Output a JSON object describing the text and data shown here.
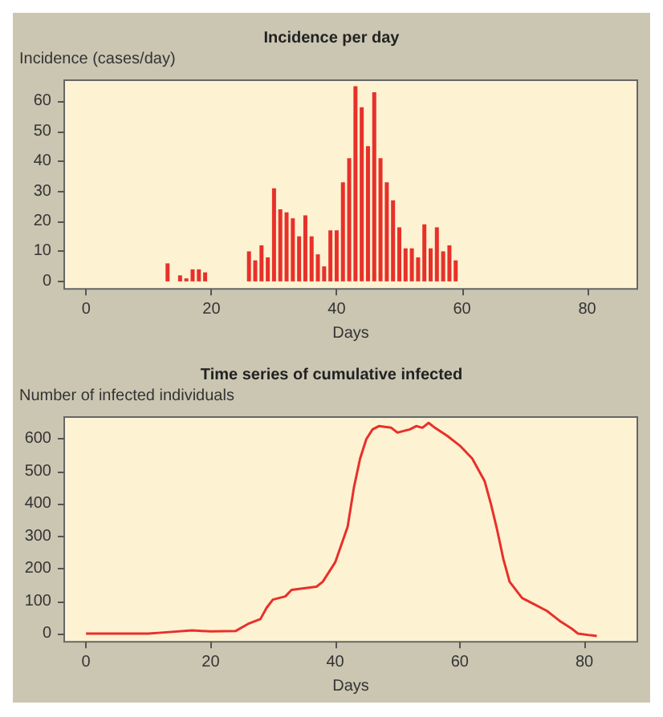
{
  "chart_data": [
    {
      "type": "bar",
      "title": "Incidence per day",
      "xlabel": "Days",
      "ylabel": "Incidence (cases/day)",
      "x": [
        13,
        15,
        16,
        17,
        18,
        19,
        26,
        27,
        28,
        29,
        30,
        31,
        32,
        33,
        34,
        35,
        36,
        37,
        38,
        39,
        40,
        41,
        42,
        43,
        44,
        45,
        46,
        47,
        48,
        49,
        50,
        51,
        52,
        53,
        54,
        55,
        56,
        57,
        58,
        59
      ],
      "series": [
        {
          "color": "#e8302a",
          "values": [
            6,
            2,
            1,
            4,
            4,
            3,
            10,
            7,
            12,
            8,
            31,
            24,
            23,
            21,
            15,
            22,
            15,
            9,
            5,
            17,
            17,
            33,
            41,
            65,
            58,
            45,
            63,
            41,
            33,
            27,
            18,
            11,
            11,
            8,
            19,
            11,
            18,
            10,
            12,
            7
          ]
        }
      ],
      "xlim": [
        -3.5,
        88
      ],
      "xticks": [
        0,
        20,
        40,
        60,
        80
      ],
      "ylim": [
        -2.5,
        67
      ],
      "yticks": [
        0,
        10,
        20,
        30,
        40,
        50,
        60
      ],
      "grid": false
    },
    {
      "type": "line",
      "title": "Time series of cumulative infected",
      "xlabel": "Days",
      "ylabel": "Number of infected individuals",
      "marker": "none",
      "x": [
        0,
        10,
        12,
        17,
        20,
        24,
        26,
        28,
        29,
        30,
        32,
        33,
        35,
        37,
        38,
        40,
        42,
        43,
        44,
        45,
        46,
        47,
        49,
        50,
        52,
        53,
        54,
        55,
        56,
        58,
        60,
        62,
        64,
        65,
        66,
        67,
        68,
        70,
        72,
        74,
        76,
        78,
        79,
        81,
        82
      ],
      "series": [
        {
          "color": "#e8302a",
          "values": [
            0,
            0,
            3,
            10,
            7,
            8,
            30,
            45,
            80,
            105,
            115,
            135,
            140,
            145,
            160,
            220,
            330,
            450,
            540,
            600,
            630,
            640,
            635,
            620,
            630,
            640,
            635,
            650,
            635,
            610,
            580,
            540,
            470,
            400,
            320,
            230,
            160,
            110,
            90,
            70,
            40,
            15,
            0,
            -5,
            -7
          ]
        }
      ],
      "xlim": [
        -3.5,
        88.5
      ],
      "xticks": [
        0,
        20,
        40,
        60,
        80
      ],
      "ylim": [
        -25,
        668
      ],
      "yticks": [
        0,
        100,
        200,
        300,
        400,
        500,
        600
      ],
      "grid": false
    }
  ]
}
